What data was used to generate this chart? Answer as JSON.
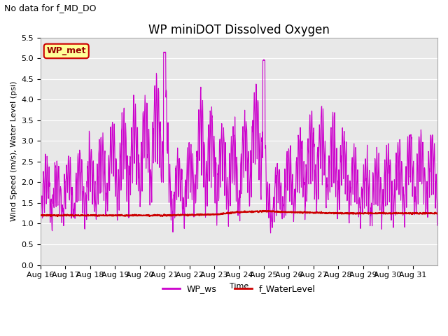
{
  "title": "WP miniDOT Dissolved Oxygen",
  "subtitle": "No data for f_MD_DO",
  "xlabel": "Time",
  "ylabel": "Wind Speed (m/s), Water Level (psi)",
  "xtick_labels": [
    "Aug 16",
    "Aug 17",
    "Aug 18",
    "Aug 19",
    "Aug 20",
    "Aug 21",
    "Aug 22",
    "Aug 23",
    "Aug 24",
    "Aug 25",
    "Aug 26",
    "Aug 27",
    "Aug 28",
    "Aug 29",
    "Aug 30",
    "Aug 31"
  ],
  "ylim": [
    0.0,
    5.5
  ],
  "yticks": [
    0.0,
    0.5,
    1.0,
    1.5,
    2.0,
    2.5,
    3.0,
    3.5,
    4.0,
    4.5,
    5.0,
    5.5
  ],
  "ws_color": "#CC00CC",
  "wl_color": "#CC0000",
  "ws_label": "WP_ws",
  "wl_label": "f_WaterLevel",
  "legend_label": "WP_met",
  "legend_bg": "#FFFF99",
  "legend_edge": "#CC0000",
  "legend_text_color": "#990000",
  "bg_color": "#E8E8E8",
  "grid_color": "#FFFFFF",
  "ws_linewidth": 0.8,
  "wl_linewidth": 1.5,
  "title_fontsize": 12,
  "subtitle_fontsize": 9,
  "axis_fontsize": 8,
  "tick_fontsize": 8
}
